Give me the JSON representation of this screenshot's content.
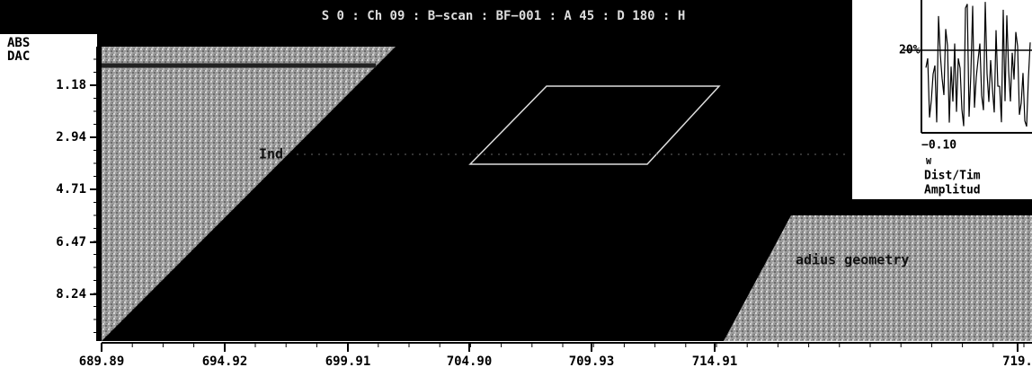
{
  "header": {
    "title": "S 0 : Ch 09 : B−scan : BF−001 : A 45 : D 180 : H"
  },
  "left_panel": {
    "labels": [
      "ABS",
      "DAC"
    ]
  },
  "y_axis": {
    "ticks": [
      "1.18",
      "2.94",
      "4.71",
      "6.47",
      "8.24"
    ]
  },
  "x_axis": {
    "ticks": [
      "689.89",
      "694.92",
      "699.91",
      "704.90",
      "709.93",
      "714.91",
      "719."
    ]
  },
  "annotations": [
    "Ind",
    "adius geometry"
  ],
  "inset": {
    "level": "20%",
    "x_tick": "−0.10",
    "marker": "W",
    "labels": [
      "Dist/Tim",
      "Amplitud"
    ]
  }
}
